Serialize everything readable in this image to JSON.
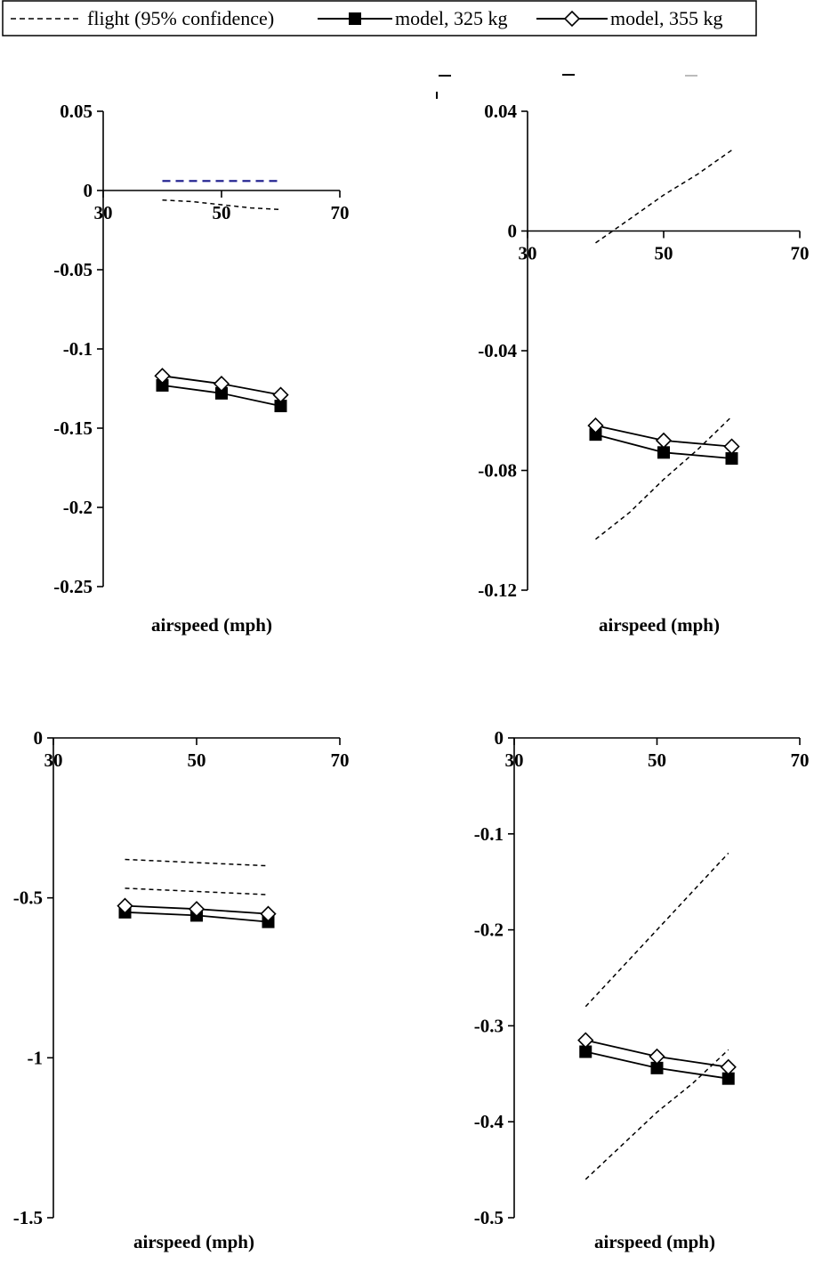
{
  "legend": {
    "entries": [
      {
        "label": "flight (95% confidence)",
        "style": "dashed"
      },
      {
        "label": "model, 325 kg",
        "style": "solid-filled-square"
      },
      {
        "label": "model, 355 kg",
        "style": "solid-open-diamond"
      }
    ]
  },
  "colors": {
    "axis": "#000000",
    "series": "#000000",
    "highlight_dash": "#1a1a8c"
  },
  "chart_data": [
    {
      "type": "line",
      "xlabel": "airspeed (mph)",
      "ylabel": "",
      "xlim": [
        30,
        70
      ],
      "ylim": [
        -0.25,
        0.05
      ],
      "xticks": [
        "30",
        "50",
        "70"
      ],
      "yticks": [
        "0.05",
        "0",
        "-0.05",
        "-0.1",
        "-0.15",
        "-0.2",
        "-0.25"
      ],
      "grid": false,
      "series": [
        {
          "name": "flight (95% confidence)",
          "style": "dashed",
          "x": [
            40,
            45,
            50,
            55,
            60
          ],
          "y": [
            -0.006,
            -0.007,
            -0.009,
            -0.011,
            -0.012
          ]
        },
        {
          "name": "flight (95% confidence)",
          "style": "dashed-blue",
          "x": [
            40,
            60
          ],
          "y": [
            0.006,
            0.006
          ]
        },
        {
          "name": "model, 325 kg",
          "style": "filled-square",
          "x": [
            40,
            50,
            60
          ],
          "y": [
            -0.123,
            -0.128,
            -0.136
          ]
        },
        {
          "name": "model, 355 kg",
          "style": "open-diamond",
          "x": [
            40,
            50,
            60
          ],
          "y": [
            -0.117,
            -0.122,
            -0.129
          ]
        }
      ]
    },
    {
      "type": "line",
      "xlabel": "airspeed (mph)",
      "ylabel": "",
      "xlim": [
        30,
        70
      ],
      "ylim": [
        -0.12,
        0.04
      ],
      "xticks": [
        "30",
        "50",
        "70"
      ],
      "yticks": [
        "0.04",
        "0",
        "-0.04",
        "-0.08",
        "-0.12"
      ],
      "grid": false,
      "series": [
        {
          "name": "flight (95% confidence)",
          "style": "dashed",
          "x": [
            40,
            45,
            50,
            55,
            60
          ],
          "y": [
            -0.004,
            0.004,
            0.012,
            0.019,
            0.027
          ]
        },
        {
          "name": "flight (95% confidence)",
          "style": "dashed",
          "x": [
            40,
            45,
            50,
            55,
            60
          ],
          "y": [
            -0.103,
            -0.094,
            -0.083,
            -0.073,
            -0.062
          ]
        },
        {
          "name": "model, 325 kg",
          "style": "filled-square",
          "x": [
            40,
            50,
            60
          ],
          "y": [
            -0.068,
            -0.074,
            -0.076
          ]
        },
        {
          "name": "model, 355 kg",
          "style": "open-diamond",
          "x": [
            40,
            50,
            60
          ],
          "y": [
            -0.065,
            -0.07,
            -0.072
          ]
        }
      ]
    },
    {
      "type": "line",
      "xlabel": "airspeed (mph)",
      "ylabel": "",
      "xlim": [
        30,
        70
      ],
      "ylim": [
        -1.5,
        0
      ],
      "xticks": [
        "30",
        "50",
        "70"
      ],
      "yticks": [
        "0",
        "-0.5",
        "-1",
        "-1.5"
      ],
      "grid": false,
      "series": [
        {
          "name": "flight (95% confidence)",
          "style": "dashed",
          "x": [
            40,
            45,
            50,
            55,
            60
          ],
          "y": [
            -0.38,
            -0.385,
            -0.39,
            -0.395,
            -0.4
          ]
        },
        {
          "name": "flight (95% confidence)",
          "style": "dashed",
          "x": [
            40,
            45,
            50,
            55,
            60
          ],
          "y": [
            -0.47,
            -0.475,
            -0.48,
            -0.485,
            -0.49
          ]
        },
        {
          "name": "model, 325 kg",
          "style": "filled-square",
          "x": [
            40,
            50,
            60
          ],
          "y": [
            -0.545,
            -0.555,
            -0.575
          ]
        },
        {
          "name": "model, 355 kg",
          "style": "open-diamond",
          "x": [
            40,
            50,
            60
          ],
          "y": [
            -0.525,
            -0.535,
            -0.55
          ]
        }
      ]
    },
    {
      "type": "line",
      "xlabel": "airspeed (mph)",
      "ylabel": "",
      "xlim": [
        30,
        70
      ],
      "ylim": [
        -0.5,
        0
      ],
      "xticks": [
        "30",
        "50",
        "70"
      ],
      "yticks": [
        "0",
        "-0.1",
        "-0.2",
        "-0.3",
        "-0.4",
        "-0.5"
      ],
      "grid": false,
      "series": [
        {
          "name": "flight (95% confidence)",
          "style": "dashed",
          "x": [
            40,
            45,
            50,
            55,
            60
          ],
          "y": [
            -0.28,
            -0.24,
            -0.2,
            -0.16,
            -0.12
          ]
        },
        {
          "name": "flight (95% confidence)",
          "style": "dashed",
          "x": [
            40,
            45,
            50,
            55,
            60
          ],
          "y": [
            -0.46,
            -0.425,
            -0.39,
            -0.36,
            -0.325
          ]
        },
        {
          "name": "model, 325 kg",
          "style": "filled-square",
          "x": [
            40,
            50,
            60
          ],
          "y": [
            -0.327,
            -0.344,
            -0.355
          ]
        },
        {
          "name": "model, 355 kg",
          "style": "open-diamond",
          "x": [
            40,
            50,
            60
          ],
          "y": [
            -0.315,
            -0.332,
            -0.343
          ]
        }
      ]
    }
  ]
}
